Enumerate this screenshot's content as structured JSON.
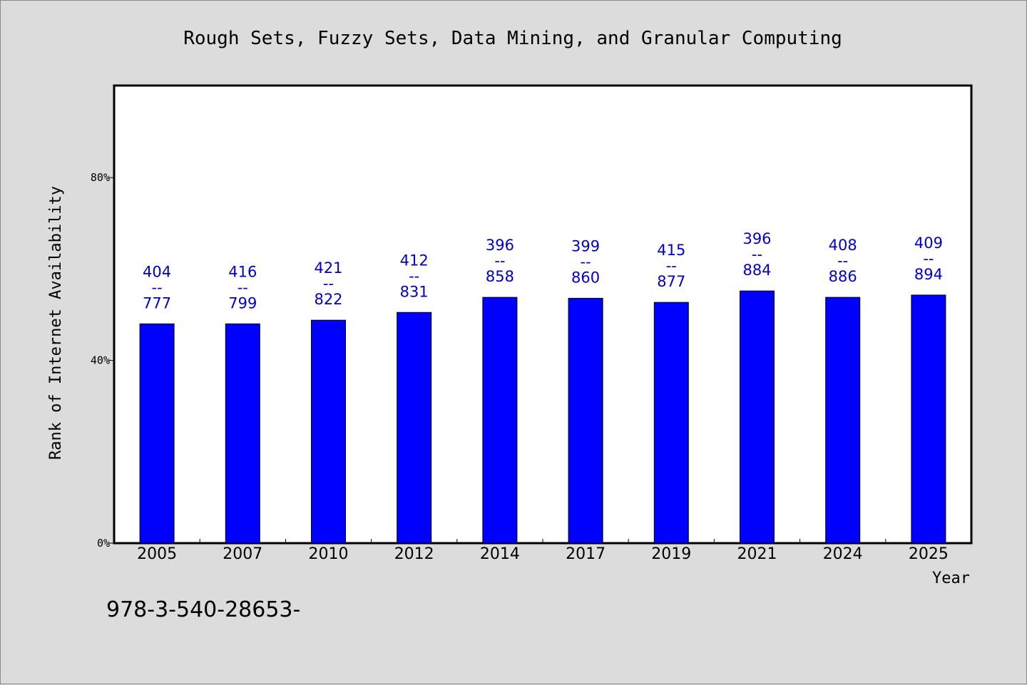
{
  "chart_data": {
    "type": "bar",
    "title": "Rough Sets, Fuzzy Sets, Data Mining, and Granular Computing",
    "xlabel": "Year",
    "ylabel": "Rank of Internet Availability",
    "categories": [
      "2005",
      "2007",
      "2010",
      "2012",
      "2014",
      "2017",
      "2019",
      "2021",
      "2024",
      "2025"
    ],
    "values": [
      48,
      48,
      48.8,
      50.5,
      53.8,
      53.6,
      52.7,
      55.2,
      53.8,
      54.3
    ],
    "value_unit": "%",
    "data_labels": [
      [
        "404",
        "--",
        "777"
      ],
      [
        "416",
        "--",
        "799"
      ],
      [
        "421",
        "--",
        "822"
      ],
      [
        "412",
        "--",
        "831"
      ],
      [
        "396",
        "--",
        "858"
      ],
      [
        "399",
        "--",
        "860"
      ],
      [
        "415",
        "--",
        "877"
      ],
      [
        "396",
        "--",
        "884"
      ],
      [
        "408",
        "--",
        "886"
      ],
      [
        "409",
        "--",
        "894"
      ]
    ],
    "ylim": [
      0,
      100
    ],
    "yticks": [
      0,
      40,
      80
    ],
    "ytick_labels": [
      "0%",
      "40%",
      "80%"
    ],
    "grid": false,
    "bar_color": "#0000ff",
    "label_color": "#0000cc",
    "background_color": "#dcdcdc",
    "plot_background": "#ffffff"
  },
  "footer": {
    "text": "978-3-540-28653-"
  }
}
